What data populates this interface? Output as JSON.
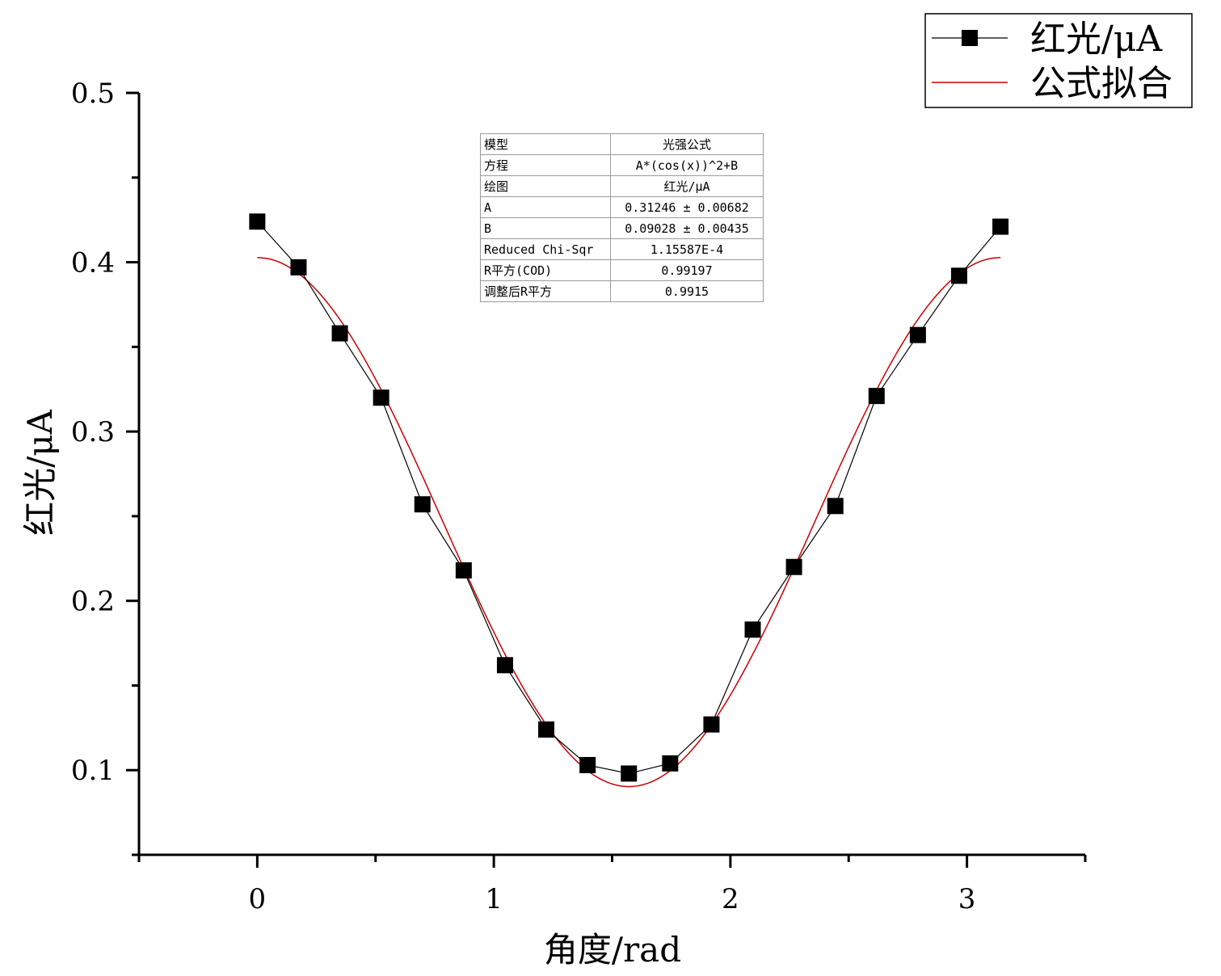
{
  "chart_data": {
    "type": "scatter",
    "xlabel": "角度/rad",
    "ylabel": "红光/μA",
    "xlim": [
      -0.5,
      3.5
    ],
    "ylim": [
      0.05,
      0.5
    ],
    "x_ticks": [
      "0",
      "1",
      "2",
      "3"
    ],
    "y_ticks": [
      "0.1",
      "0.2",
      "0.3",
      "0.4",
      "0.5"
    ],
    "grid": false,
    "legend_position": "top-right",
    "series": [
      {
        "name": "红光/μA",
        "style": "line+square-markers",
        "color": "#000000",
        "x": [
          0,
          0.1745,
          0.3491,
          0.5236,
          0.6981,
          0.8727,
          1.0472,
          1.2217,
          1.3963,
          1.5708,
          1.7453,
          1.9199,
          2.0944,
          2.2689,
          2.4435,
          2.618,
          2.7925,
          2.9671,
          3.1416
        ],
        "y": [
          0.424,
          0.397,
          0.358,
          0.32,
          0.257,
          0.218,
          0.162,
          0.124,
          0.103,
          0.098,
          0.104,
          0.127,
          0.183,
          0.22,
          0.256,
          0.321,
          0.357,
          0.392,
          0.421
        ]
      },
      {
        "name": "公式拟合",
        "style": "line",
        "color": "#cc0000",
        "formula": "A*(cos(x))^2+B",
        "params": {
          "A": 0.31246,
          "B": 0.09028
        },
        "x_range": [
          0,
          3.1416
        ]
      }
    ],
    "fit_table": [
      {
        "key": "模型",
        "value": "光强公式"
      },
      {
        "key": "方程",
        "value": "A*(cos(x))^2+B"
      },
      {
        "key": "绘图",
        "value": "红光/μA"
      },
      {
        "key": "A",
        "value": "0.31246 ± 0.00682"
      },
      {
        "key": "B",
        "value": "0.09028 ± 0.00435"
      },
      {
        "key": "Reduced Chi-Sqr",
        "value": "1.15587E-4"
      },
      {
        "key": "R平方(COD)",
        "value": "0.99197"
      },
      {
        "key": "调整后R平方",
        "value": "0.9915"
      }
    ]
  }
}
